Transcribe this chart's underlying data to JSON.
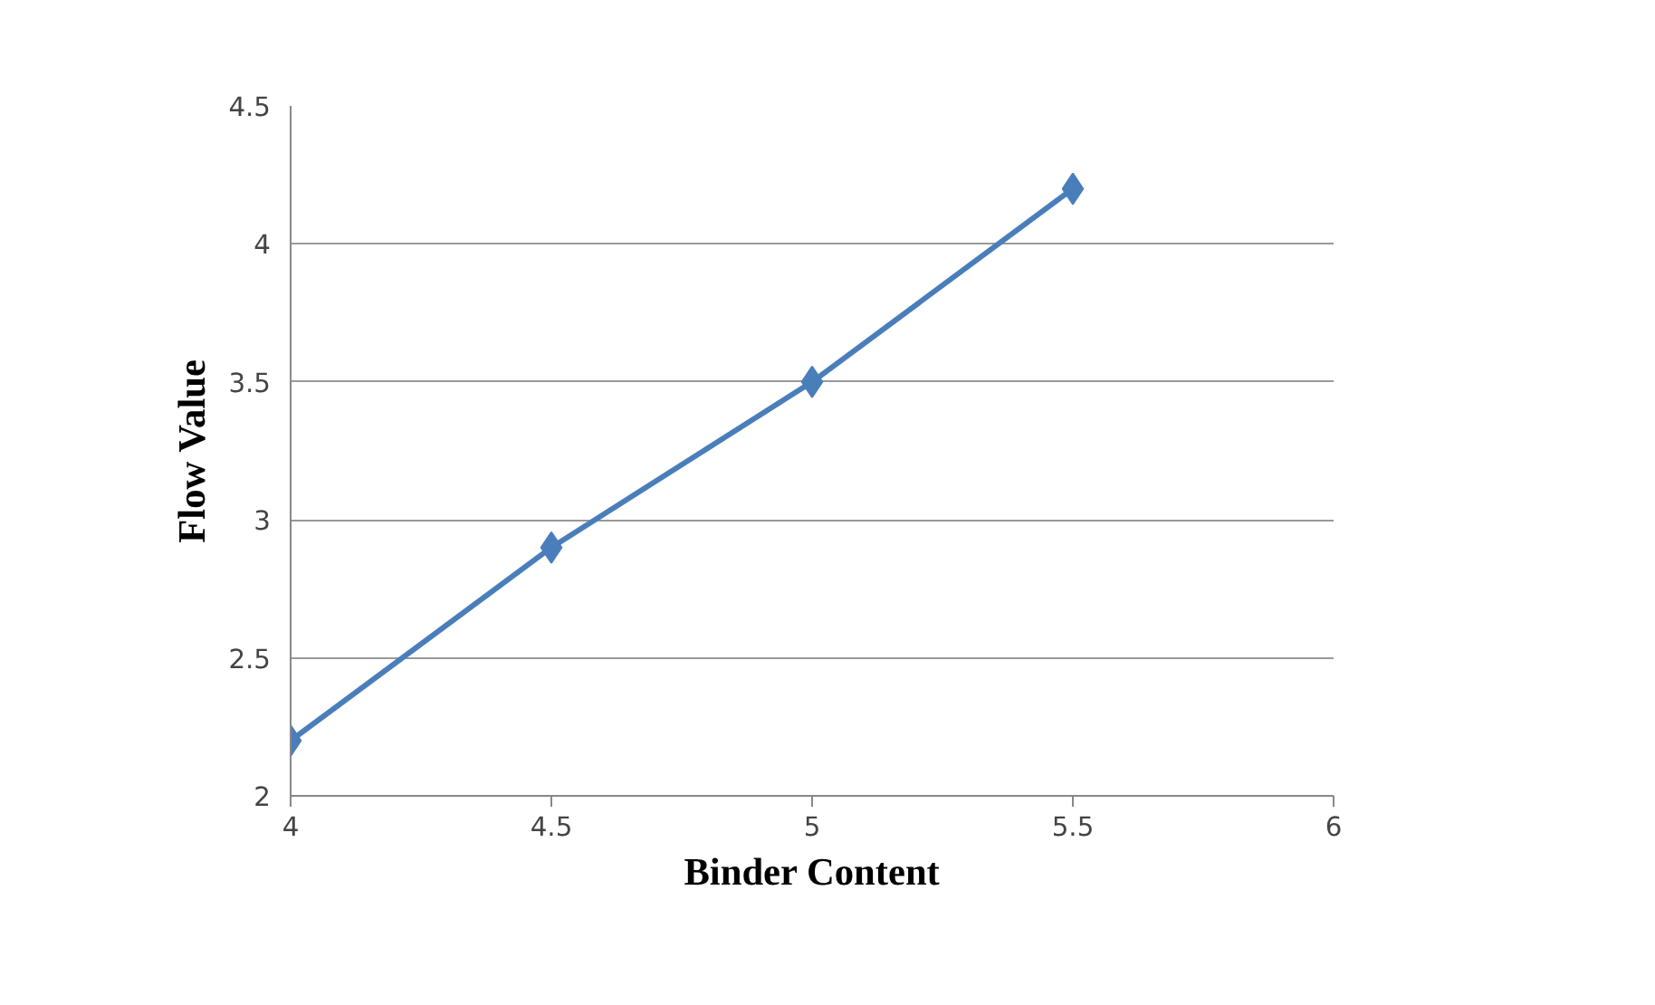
{
  "chart_data": {
    "type": "line",
    "xlabel": "Binder Content",
    "ylabel": "Flow Value",
    "x": [
      4,
      4.5,
      5,
      5.5
    ],
    "series": [
      {
        "color": "#4a7ebb",
        "values": [
          2.2,
          2.9,
          3.5,
          4.2
        ]
      }
    ],
    "xlim": [
      4,
      6
    ],
    "xticks": [
      4,
      4.5,
      5,
      5.5,
      6
    ],
    "ylim": [
      2,
      4.5
    ],
    "yticks": [
      2,
      2.5,
      3,
      3.5,
      4,
      4.5
    ],
    "grid": "y",
    "marker": "diamond",
    "line_style": "solid"
  }
}
